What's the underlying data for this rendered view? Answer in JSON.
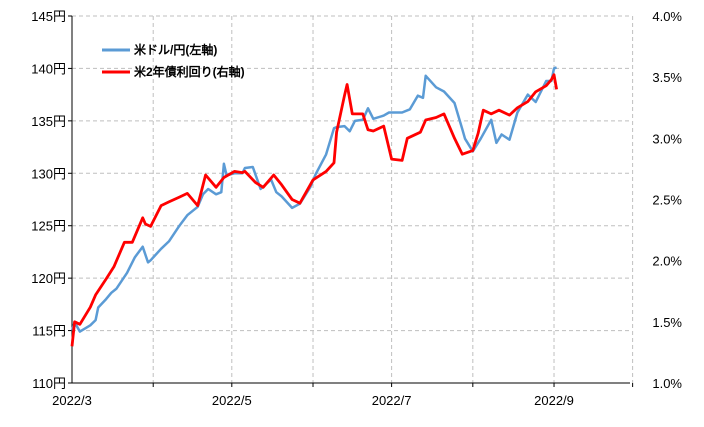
{
  "chart_data": {
    "type": "line",
    "x_range": [
      "2022-03-01",
      "2022-09-30"
    ],
    "x_ticks": [
      {
        "date": "2022-03-01",
        "label": "2022/3"
      },
      {
        "date": "2022-05-01",
        "label": "2022/5"
      },
      {
        "date": "2022-07-01",
        "label": "2022/7"
      },
      {
        "date": "2022-09-01",
        "label": "2022/9"
      }
    ],
    "x_gridlines": [
      "2022-04-01",
      "2022-05-01",
      "2022-06-01",
      "2022-07-01",
      "2022-08-01",
      "2022-09-01",
      "2022-10-01"
    ],
    "y_left": {
      "ylim": [
        110,
        145
      ],
      "ticks": [
        110,
        115,
        120,
        125,
        130,
        135,
        140,
        145
      ],
      "tick_labels": [
        "110円",
        "115円",
        "120円",
        "125円",
        "130円",
        "135円",
        "140円",
        "145円"
      ]
    },
    "y_right": {
      "ylim": [
        1.0,
        4.0
      ],
      "ticks": [
        1.0,
        1.5,
        2.0,
        2.5,
        3.0,
        3.5,
        4.0
      ],
      "tick_labels": [
        "1.0%",
        "1.5%",
        "2.0%",
        "2.5%",
        "3.0%",
        "3.5%",
        "4.0%"
      ]
    },
    "grid": true,
    "legend_position": "top-left",
    "series": [
      {
        "name": "米ドル/円(左軸)",
        "axis": "left",
        "color": "#5b9bd5",
        "points": [
          [
            "2022-03-01",
            115.0
          ],
          [
            "2022-03-02",
            115.8
          ],
          [
            "2022-03-04",
            114.9
          ],
          [
            "2022-03-08",
            115.5
          ],
          [
            "2022-03-10",
            116.0
          ],
          [
            "2022-03-11",
            117.2
          ],
          [
            "2022-03-14",
            118.0
          ],
          [
            "2022-03-16",
            118.6
          ],
          [
            "2022-03-18",
            119.0
          ],
          [
            "2022-03-22",
            120.5
          ],
          [
            "2022-03-25",
            122.0
          ],
          [
            "2022-03-28",
            123.0
          ],
          [
            "2022-03-30",
            121.5
          ],
          [
            "2022-03-31",
            121.7
          ],
          [
            "2022-04-04",
            122.8
          ],
          [
            "2022-04-07",
            123.5
          ],
          [
            "2022-04-11",
            125.0
          ],
          [
            "2022-04-14",
            126.0
          ],
          [
            "2022-04-18",
            126.8
          ],
          [
            "2022-04-20",
            128.0
          ],
          [
            "2022-04-22",
            128.5
          ],
          [
            "2022-04-25",
            128.0
          ],
          [
            "2022-04-27",
            128.2
          ],
          [
            "2022-04-28",
            130.9
          ],
          [
            "2022-04-29",
            129.8
          ],
          [
            "2022-05-02",
            130.0
          ],
          [
            "2022-05-05",
            130.0
          ],
          [
            "2022-05-06",
            130.5
          ],
          [
            "2022-05-09",
            130.6
          ],
          [
            "2022-05-12",
            128.5
          ],
          [
            "2022-05-16",
            129.4
          ],
          [
            "2022-05-18",
            128.2
          ],
          [
            "2022-05-20",
            127.8
          ],
          [
            "2022-05-24",
            126.7
          ],
          [
            "2022-05-27",
            127.1
          ],
          [
            "2022-05-31",
            128.7
          ],
          [
            "2022-06-02",
            129.9
          ],
          [
            "2022-06-06",
            131.8
          ],
          [
            "2022-06-09",
            134.3
          ],
          [
            "2022-06-10",
            134.4
          ],
          [
            "2022-06-13",
            134.5
          ],
          [
            "2022-06-15",
            134.0
          ],
          [
            "2022-06-17",
            135.0
          ],
          [
            "2022-06-20",
            135.1
          ],
          [
            "2022-06-22",
            136.2
          ],
          [
            "2022-06-24",
            135.2
          ],
          [
            "2022-06-28",
            135.5
          ],
          [
            "2022-06-30",
            135.8
          ],
          [
            "2022-07-05",
            135.8
          ],
          [
            "2022-07-08",
            136.1
          ],
          [
            "2022-07-11",
            137.4
          ],
          [
            "2022-07-13",
            137.2
          ],
          [
            "2022-07-14",
            139.3
          ],
          [
            "2022-07-18",
            138.2
          ],
          [
            "2022-07-21",
            137.8
          ],
          [
            "2022-07-25",
            136.7
          ],
          [
            "2022-07-28",
            134.2
          ],
          [
            "2022-07-29",
            133.3
          ],
          [
            "2022-08-01",
            132.1
          ],
          [
            "2022-08-04",
            133.3
          ],
          [
            "2022-08-08",
            135.1
          ],
          [
            "2022-08-10",
            132.9
          ],
          [
            "2022-08-12",
            133.7
          ],
          [
            "2022-08-15",
            133.2
          ],
          [
            "2022-08-18",
            135.8
          ],
          [
            "2022-08-22",
            137.5
          ],
          [
            "2022-08-25",
            136.8
          ],
          [
            "2022-08-29",
            138.8
          ],
          [
            "2022-08-31",
            138.8
          ],
          [
            "2022-09-01",
            140.0
          ],
          [
            "2022-09-02",
            140.1
          ]
        ]
      },
      {
        "name": "米2年債利回り(右軸)",
        "axis": "right",
        "color": "#ff0000",
        "points": [
          [
            "2022-03-01",
            1.3
          ],
          [
            "2022-03-02",
            1.5
          ],
          [
            "2022-03-04",
            1.48
          ],
          [
            "2022-03-08",
            1.62
          ],
          [
            "2022-03-10",
            1.72
          ],
          [
            "2022-03-14",
            1.85
          ],
          [
            "2022-03-17",
            1.95
          ],
          [
            "2022-03-21",
            2.15
          ],
          [
            "2022-03-24",
            2.15
          ],
          [
            "2022-03-28",
            2.35
          ],
          [
            "2022-03-29",
            2.3
          ],
          [
            "2022-03-31",
            2.28
          ],
          [
            "2022-04-04",
            2.45
          ],
          [
            "2022-04-07",
            2.48
          ],
          [
            "2022-04-11",
            2.52
          ],
          [
            "2022-04-14",
            2.55
          ],
          [
            "2022-04-18",
            2.45
          ],
          [
            "2022-04-21",
            2.7
          ],
          [
            "2022-04-25",
            2.6
          ],
          [
            "2022-04-28",
            2.68
          ],
          [
            "2022-05-02",
            2.73
          ],
          [
            "2022-05-05",
            2.72
          ],
          [
            "2022-05-06",
            2.73
          ],
          [
            "2022-05-10",
            2.64
          ],
          [
            "2022-05-13",
            2.6
          ],
          [
            "2022-05-17",
            2.7
          ],
          [
            "2022-05-20",
            2.62
          ],
          [
            "2022-05-24",
            2.5
          ],
          [
            "2022-05-27",
            2.47
          ],
          [
            "2022-06-01",
            2.66
          ],
          [
            "2022-06-06",
            2.73
          ],
          [
            "2022-06-09",
            2.8
          ],
          [
            "2022-06-10",
            3.05
          ],
          [
            "2022-06-13",
            3.35
          ],
          [
            "2022-06-14",
            3.44
          ],
          [
            "2022-06-16",
            3.2
          ],
          [
            "2022-06-20",
            3.2
          ],
          [
            "2022-06-22",
            3.07
          ],
          [
            "2022-06-24",
            3.06
          ],
          [
            "2022-06-28",
            3.1
          ],
          [
            "2022-07-01",
            2.83
          ],
          [
            "2022-07-05",
            2.82
          ],
          [
            "2022-07-07",
            3.0
          ],
          [
            "2022-07-12",
            3.05
          ],
          [
            "2022-07-14",
            3.15
          ],
          [
            "2022-07-18",
            3.17
          ],
          [
            "2022-07-21",
            3.2
          ],
          [
            "2022-07-25",
            3.0
          ],
          [
            "2022-07-28",
            2.87
          ],
          [
            "2022-08-01",
            2.9
          ],
          [
            "2022-08-03",
            3.04
          ],
          [
            "2022-08-05",
            3.23
          ],
          [
            "2022-08-08",
            3.2
          ],
          [
            "2022-08-11",
            3.23
          ],
          [
            "2022-08-15",
            3.19
          ],
          [
            "2022-08-18",
            3.25
          ],
          [
            "2022-08-22",
            3.3
          ],
          [
            "2022-08-25",
            3.38
          ],
          [
            "2022-08-29",
            3.43
          ],
          [
            "2022-08-31",
            3.48
          ],
          [
            "2022-09-01",
            3.52
          ],
          [
            "2022-09-02",
            3.4
          ]
        ]
      }
    ]
  }
}
